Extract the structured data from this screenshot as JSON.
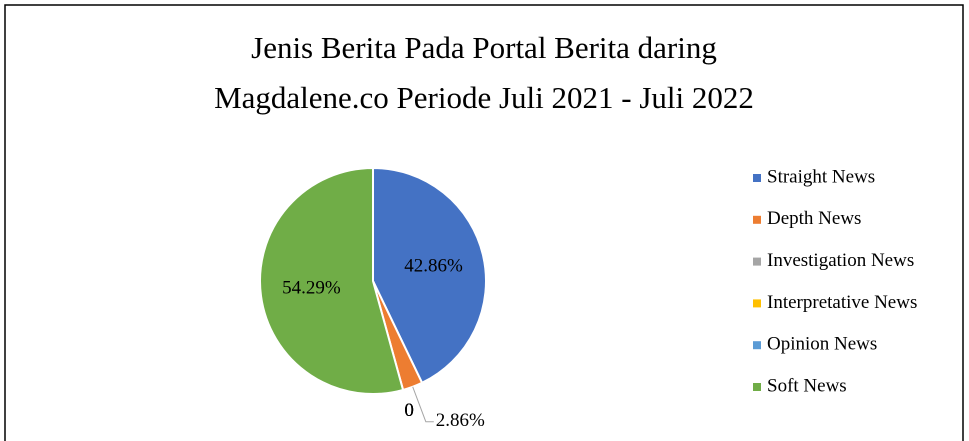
{
  "chart_data": {
    "type": "pie",
    "title": [
      "Jenis Berita Pada Portal Berita daring",
      "Magdalene.co Periode Juli 2021 - Juli 2022"
    ],
    "categories": [
      "Straight News",
      "Depth News",
      "Investigation News",
      "Interpretative News",
      "Opinion News",
      "Soft News"
    ],
    "values": [
      42.86,
      2.86,
      0,
      0,
      0,
      54.29
    ],
    "value_labels": [
      "42.86%",
      "2.86%",
      "0",
      "0",
      "0",
      "54.29%"
    ],
    "colors": [
      "#4472c4",
      "#ed7d31",
      "#a5a5a5",
      "#ffc000",
      "#5b9bd5",
      "#70ad47"
    ],
    "legend": "right"
  }
}
